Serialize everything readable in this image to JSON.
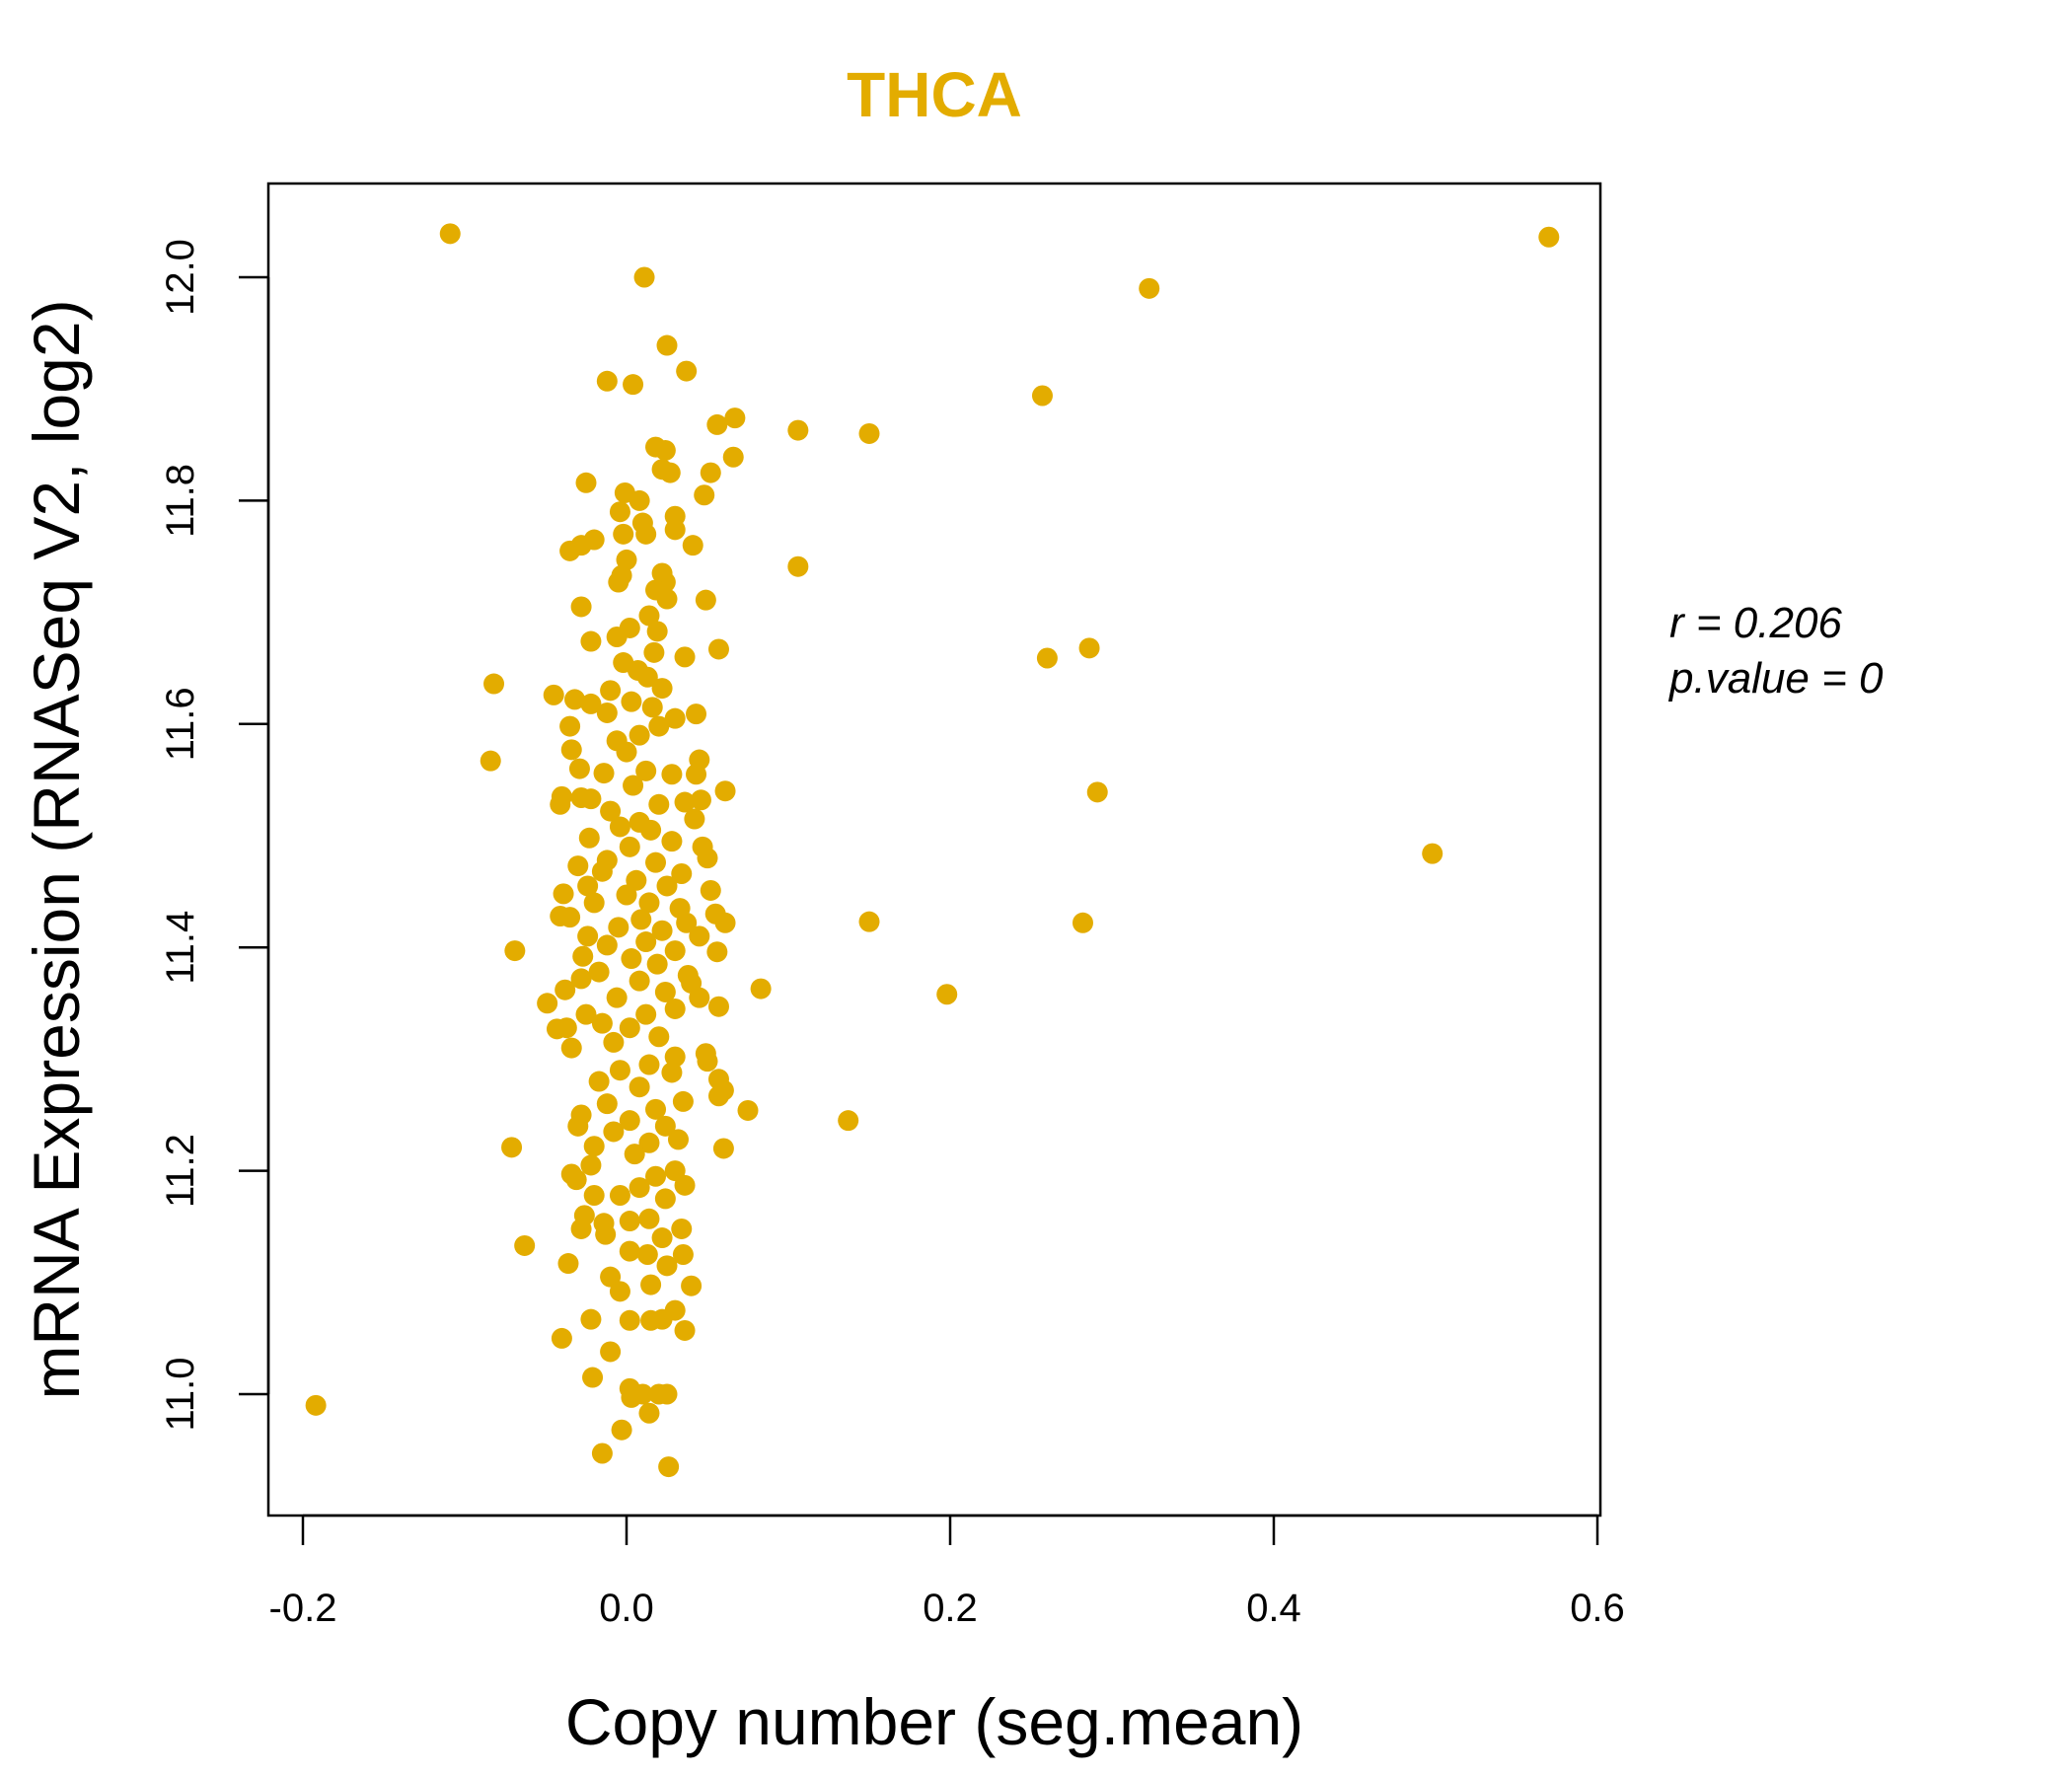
{
  "chart_data": {
    "type": "scatter",
    "title": "THCA",
    "xlabel": "Copy number (seg.mean)",
    "ylabel": "mRNA Expression (RNASeq V2, log2)",
    "xlim": [
      -0.21,
      0.6
    ],
    "ylim": [
      10.89,
      12.08
    ],
    "xticks": [
      -0.2,
      0.0,
      0.2,
      0.4,
      0.6
    ],
    "xtick_labels": [
      "-0.2",
      "0.0",
      "0.2",
      "0.4",
      "0.6"
    ],
    "yticks": [
      11.0,
      11.2,
      11.4,
      11.6,
      11.8,
      12.0
    ],
    "ytick_labels": [
      "11.0",
      "11.2",
      "11.4",
      "11.6",
      "11.8",
      "12.0"
    ],
    "grid": false,
    "point_color": "#E3AC00",
    "title_color": "#E3AC00",
    "annotation": {
      "r_label": "r = 0.206",
      "p_label": "p.value = 0"
    },
    "points": [
      [
        -0.109,
        12.039
      ],
      [
        0.57,
        12.036
      ],
      [
        0.323,
        11.99
      ],
      [
        0.011,
        12.0
      ],
      [
        0.257,
        11.894
      ],
      [
        0.15,
        11.86
      ],
      [
        0.106,
        11.863
      ],
      [
        0.106,
        11.741
      ],
      [
        0.26,
        11.659
      ],
      [
        0.286,
        11.668
      ],
      [
        0.291,
        11.539
      ],
      [
        0.498,
        11.484
      ],
      [
        0.15,
        11.423
      ],
      [
        0.282,
        11.422
      ],
      [
        0.198,
        11.358
      ],
      [
        0.137,
        11.245
      ],
      [
        -0.192,
        10.99
      ],
      [
        0.083,
        11.363
      ],
      [
        0.075,
        11.254
      ],
      [
        -0.082,
        11.636
      ],
      [
        -0.084,
        11.567
      ],
      [
        -0.069,
        11.397
      ],
      [
        -0.071,
        11.221
      ],
      [
        -0.063,
        11.133
      ],
      [
        0.025,
        11.939
      ],
      [
        0.037,
        11.916
      ],
      [
        -0.012,
        11.907
      ],
      [
        0.004,
        11.904
      ],
      [
        0.067,
        11.874
      ],
      [
        0.056,
        11.868
      ],
      [
        0.066,
        11.839
      ],
      [
        -0.025,
        11.816
      ],
      [
        0.061,
        11.54
      ],
      [
        0.061,
        11.422
      ],
      [
        0.026,
        10.935
      ],
      [
        -0.015,
        10.947
      ],
      [
        -0.003,
        10.968
      ],
      [
        -0.04,
        11.05
      ],
      [
        -0.021,
        11.015
      ],
      [
        0.014,
        10.983
      ],
      [
        -0.035,
        11.755
      ],
      [
        -0.028,
        11.76
      ],
      [
        -0.02,
        11.765
      ],
      [
        -0.004,
        11.79
      ],
      [
        -0.001,
        11.807
      ],
      [
        0.008,
        11.8
      ],
      [
        0.012,
        11.77
      ],
      [
        0.01,
        11.78
      ],
      [
        0.018,
        11.848
      ],
      [
        0.024,
        11.845
      ],
      [
        0.022,
        11.828
      ],
      [
        0.027,
        11.825
      ],
      [
        0.03,
        11.786
      ],
      [
        0.03,
        11.774
      ],
      [
        0.041,
        11.76
      ],
      [
        0.048,
        11.805
      ],
      [
        0.052,
        11.825
      ],
      [
        -0.002,
        11.77
      ],
      [
        0.0,
        11.747
      ],
      [
        -0.005,
        11.727
      ],
      [
        -0.003,
        11.733
      ],
      [
        0.022,
        11.735
      ],
      [
        0.024,
        11.727
      ],
      [
        0.018,
        11.72
      ],
      [
        -0.028,
        11.705
      ],
      [
        0.025,
        11.712
      ],
      [
        0.049,
        11.711
      ],
      [
        0.014,
        11.697
      ],
      [
        0.002,
        11.686
      ],
      [
        -0.006,
        11.678
      ],
      [
        0.019,
        11.683
      ],
      [
        0.017,
        11.664
      ],
      [
        -0.022,
        11.674
      ],
      [
        0.036,
        11.66
      ],
      [
        0.057,
        11.667
      ],
      [
        -0.002,
        11.655
      ],
      [
        0.007,
        11.648
      ],
      [
        0.013,
        11.642
      ],
      [
        -0.01,
        11.63
      ],
      [
        0.022,
        11.632
      ],
      [
        -0.045,
        11.626
      ],
      [
        -0.032,
        11.622
      ],
      [
        -0.022,
        11.618
      ],
      [
        0.003,
        11.62
      ],
      [
        0.016,
        11.615
      ],
      [
        0.03,
        11.605
      ],
      [
        0.043,
        11.609
      ],
      [
        -0.012,
        11.61
      ],
      [
        -0.035,
        11.598
      ],
      [
        0.02,
        11.598
      ],
      [
        0.008,
        11.59
      ],
      [
        -0.006,
        11.585
      ],
      [
        -0.034,
        11.577
      ],
      [
        0.045,
        11.568
      ],
      [
        0.0,
        11.575
      ],
      [
        -0.029,
        11.56
      ],
      [
        -0.014,
        11.556
      ],
      [
        0.012,
        11.558
      ],
      [
        0.028,
        11.555
      ],
      [
        0.043,
        11.555
      ],
      [
        0.004,
        11.545
      ],
      [
        -0.04,
        11.535
      ],
      [
        -0.028,
        11.534
      ],
      [
        -0.022,
        11.533
      ],
      [
        0.036,
        11.53
      ],
      [
        0.046,
        11.532
      ],
      [
        0.02,
        11.528
      ],
      [
        -0.041,
        11.528
      ],
      [
        -0.01,
        11.522
      ],
      [
        0.042,
        11.515
      ],
      [
        0.008,
        11.512
      ],
      [
        -0.004,
        11.508
      ],
      [
        0.015,
        11.505
      ],
      [
        -0.023,
        11.498
      ],
      [
        0.028,
        11.495
      ],
      [
        0.047,
        11.49
      ],
      [
        0.002,
        11.49
      ],
      [
        0.05,
        11.48
      ],
      [
        -0.012,
        11.478
      ],
      [
        0.018,
        11.476
      ],
      [
        -0.03,
        11.473
      ],
      [
        -0.015,
        11.468
      ],
      [
        0.034,
        11.466
      ],
      [
        0.006,
        11.46
      ],
      [
        -0.024,
        11.455
      ],
      [
        0.025,
        11.455
      ],
      [
        0.052,
        11.451
      ],
      [
        -0.039,
        11.448
      ],
      [
        0.0,
        11.447
      ],
      [
        0.014,
        11.44
      ],
      [
        -0.02,
        11.44
      ],
      [
        0.033,
        11.435
      ],
      [
        0.055,
        11.43
      ],
      [
        -0.041,
        11.428
      ],
      [
        -0.035,
        11.427
      ],
      [
        0.009,
        11.425
      ],
      [
        0.037,
        11.422
      ],
      [
        -0.005,
        11.418
      ],
      [
        0.022,
        11.415
      ],
      [
        -0.024,
        11.41
      ],
      [
        0.045,
        11.41
      ],
      [
        0.012,
        11.405
      ],
      [
        -0.012,
        11.402
      ],
      [
        0.03,
        11.397
      ],
      [
        0.056,
        11.396
      ],
      [
        -0.027,
        11.392
      ],
      [
        0.003,
        11.39
      ],
      [
        0.019,
        11.385
      ],
      [
        -0.017,
        11.378
      ],
      [
        0.038,
        11.375
      ],
      [
        -0.028,
        11.372
      ],
      [
        0.008,
        11.37
      ],
      [
        0.04,
        11.368
      ],
      [
        -0.038,
        11.362
      ],
      [
        0.024,
        11.36
      ],
      [
        -0.006,
        11.355
      ],
      [
        0.045,
        11.355
      ],
      [
        -0.049,
        11.35
      ],
      [
        0.057,
        11.347
      ],
      [
        0.03,
        11.345
      ],
      [
        0.012,
        11.34
      ],
      [
        -0.025,
        11.34
      ],
      [
        -0.015,
        11.332
      ],
      [
        0.002,
        11.328
      ],
      [
        -0.043,
        11.327
      ],
      [
        -0.037,
        11.328
      ],
      [
        0.02,
        11.32
      ],
      [
        -0.008,
        11.315
      ],
      [
        -0.034,
        11.31
      ],
      [
        0.049,
        11.305
      ],
      [
        0.03,
        11.302
      ],
      [
        0.05,
        11.298
      ],
      [
        0.014,
        11.295
      ],
      [
        -0.004,
        11.29
      ],
      [
        0.028,
        11.288
      ],
      [
        0.057,
        11.282
      ],
      [
        -0.017,
        11.28
      ],
      [
        0.008,
        11.275
      ],
      [
        0.06,
        11.272
      ],
      [
        0.057,
        11.267
      ],
      [
        0.035,
        11.262
      ],
      [
        -0.012,
        11.26
      ],
      [
        0.018,
        11.255
      ],
      [
        -0.028,
        11.25
      ],
      [
        0.002,
        11.245
      ],
      [
        0.024,
        11.24
      ],
      [
        -0.03,
        11.24
      ],
      [
        -0.008,
        11.235
      ],
      [
        0.032,
        11.228
      ],
      [
        0.014,
        11.225
      ],
      [
        -0.02,
        11.222
      ],
      [
        0.06,
        11.22
      ],
      [
        0.005,
        11.215
      ],
      [
        -0.022,
        11.205
      ],
      [
        0.03,
        11.2
      ],
      [
        0.018,
        11.195
      ],
      [
        -0.034,
        11.197
      ],
      [
        -0.031,
        11.192
      ],
      [
        0.036,
        11.187
      ],
      [
        0.008,
        11.185
      ],
      [
        -0.02,
        11.178
      ],
      [
        -0.004,
        11.178
      ],
      [
        0.024,
        11.175
      ],
      [
        -0.026,
        11.16
      ],
      [
        0.002,
        11.155
      ],
      [
        0.014,
        11.157
      ],
      [
        -0.014,
        11.153
      ],
      [
        0.034,
        11.148
      ],
      [
        -0.028,
        11.148
      ],
      [
        0.022,
        11.14
      ],
      [
        -0.013,
        11.143
      ],
      [
        0.002,
        11.128
      ],
      [
        0.013,
        11.125
      ],
      [
        0.035,
        11.125
      ],
      [
        -0.036,
        11.117
      ],
      [
        0.025,
        11.115
      ],
      [
        -0.01,
        11.105
      ],
      [
        0.015,
        11.098
      ],
      [
        0.04,
        11.097
      ],
      [
        -0.004,
        11.092
      ],
      [
        0.03,
        11.075
      ],
      [
        0.022,
        11.067
      ],
      [
        0.015,
        11.066
      ],
      [
        0.002,
        11.066
      ],
      [
        -0.022,
        11.067
      ],
      [
        0.036,
        11.057
      ],
      [
        -0.01,
        11.038
      ],
      [
        0.002,
        11.005
      ],
      [
        0.02,
        11.0
      ],
      [
        0.025,
        11.0
      ],
      [
        0.003,
        10.997
      ],
      [
        0.01,
        11.0
      ]
    ]
  }
}
